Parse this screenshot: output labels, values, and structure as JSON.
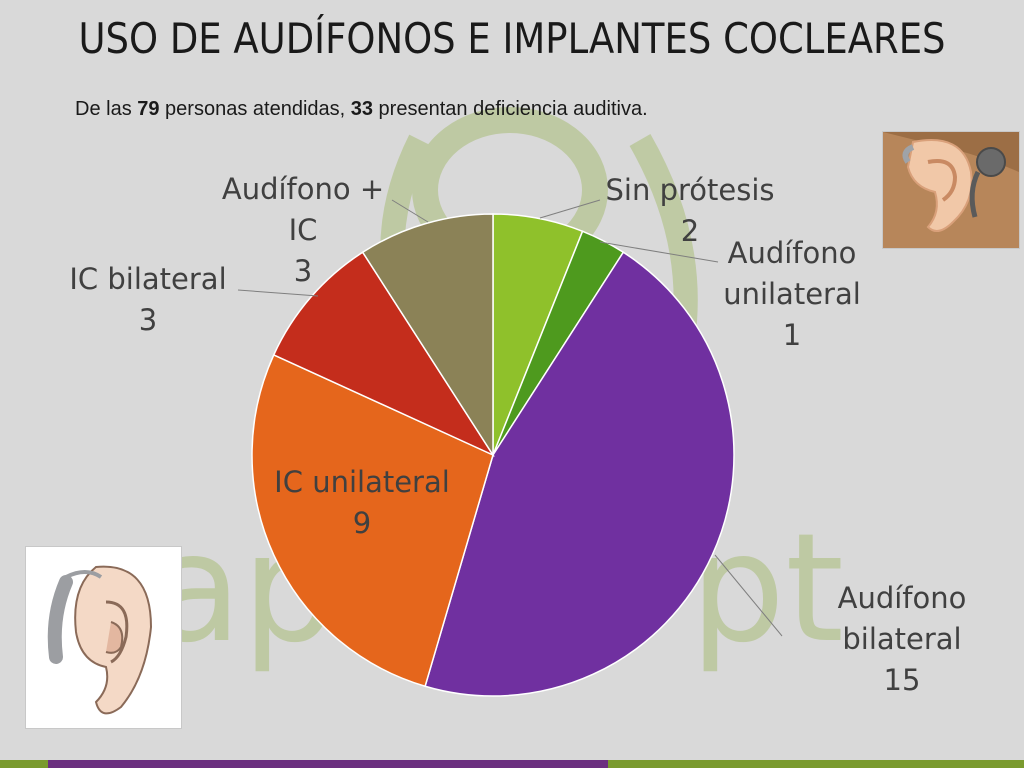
{
  "slide": {
    "title": "USO DE AUDÍFONOS E IMPLANTES COCLEARES",
    "subtitle": {
      "part1": "De las ",
      "num1": "79",
      "part2": " personas atendidas, ",
      "num2": "33",
      "part3": " presentan deficiencia auditiva."
    },
    "watermark_text": "ap",
    "watermark_text2": "pt"
  },
  "colors": {
    "background": "#d9d9d9",
    "watermark": "#b5c48f"
  },
  "chart_data": {
    "type": "pie",
    "title": "",
    "slices": [
      {
        "label_lines": [
          "Sin prótesis",
          "2"
        ],
        "category": "Sin prótesis",
        "value": 2,
        "color": "#8fc12b"
      },
      {
        "label_lines": [
          "Audífono",
          "unilateral",
          "1"
        ],
        "category": "Audífono unilateral",
        "value": 1,
        "color": "#4e9a1e"
      },
      {
        "label_lines": [
          "Audífono",
          "bilateral",
          "15"
        ],
        "category": "Audífono bilateral",
        "value": 15,
        "color": "#7030a0"
      },
      {
        "label_lines": [
          "IC unilateral",
          "9"
        ],
        "category": "IC unilateral",
        "value": 9,
        "color": "#e5661c"
      },
      {
        "label_lines": [
          "IC bilateral",
          "3"
        ],
        "category": "IC bilateral",
        "value": 3,
        "color": "#c42d1c"
      },
      {
        "label_lines": [
          "Audífono +",
          "IC",
          "3"
        ],
        "category": "Audífono + IC",
        "value": 3,
        "color": "#8b8257"
      }
    ],
    "start_angle_deg": 0,
    "direction": "clockwise"
  }
}
